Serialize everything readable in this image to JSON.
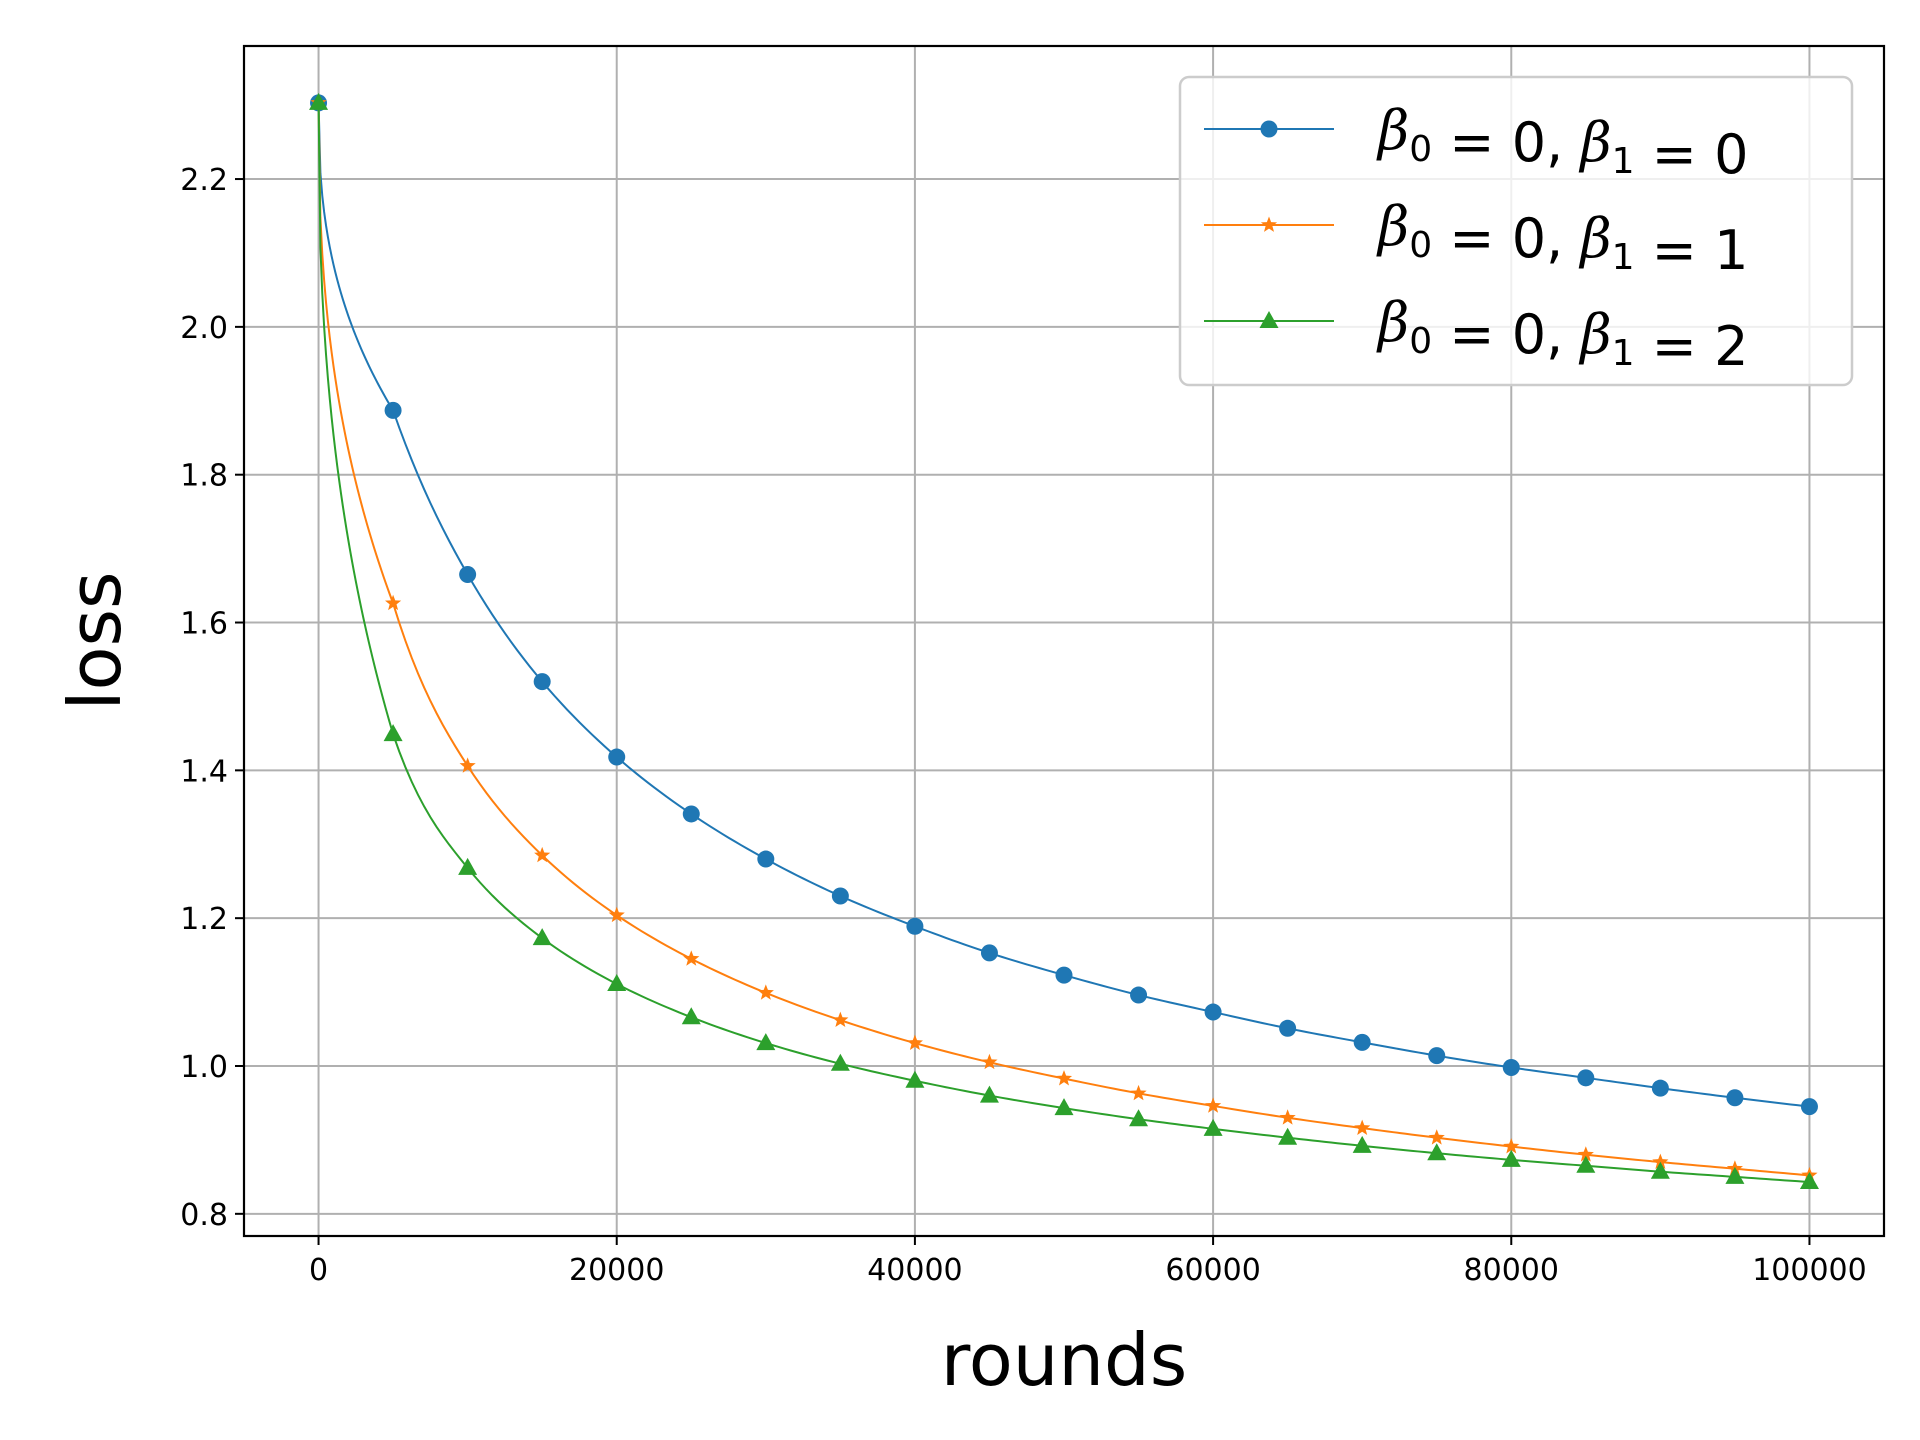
{
  "chart_data": {
    "type": "line",
    "xlabel": "rounds",
    "ylabel": "loss",
    "xlim": [
      -5000,
      105000
    ],
    "ylim": [
      0.77,
      2.38
    ],
    "x_ticks": [
      0,
      20000,
      40000,
      60000,
      80000,
      100000
    ],
    "x_tick_labels": [
      "0",
      "20000",
      "40000",
      "60000",
      "80000",
      "100000"
    ],
    "y_ticks": [
      0.8,
      1.0,
      1.2,
      1.4,
      1.6,
      1.8,
      2.0,
      2.2
    ],
    "y_tick_labels": [
      "0.8",
      "1.0",
      "1.2",
      "1.4",
      "1.6",
      "1.8",
      "2.0",
      "2.2"
    ],
    "grid": true,
    "legend_position": "top-right",
    "x": [
      0,
      5000,
      10000,
      15000,
      20000,
      25000,
      30000,
      35000,
      40000,
      45000,
      50000,
      55000,
      60000,
      65000,
      70000,
      75000,
      80000,
      85000,
      90000,
      95000,
      100000
    ],
    "series": [
      {
        "name": "β0 = 0, β1 = 0",
        "label_parts": {
          "b": "β",
          "s0": "0",
          "mid": " = 0, ",
          "s1": "1",
          "end": " = 0"
        },
        "color": "#1f77b4",
        "marker": "circle",
        "values": [
          2.303,
          1.887,
          1.665,
          1.52,
          1.418,
          1.341,
          1.28,
          1.23,
          1.189,
          1.153,
          1.123,
          1.096,
          1.073,
          1.051,
          1.032,
          1.014,
          0.998,
          0.984,
          0.97,
          0.957,
          0.945
        ]
      },
      {
        "name": "β0 = 0, β1 = 1",
        "label_parts": {
          "b": "β",
          "s0": "0",
          "mid": " = 0, ",
          "s1": "1",
          "end": " = 1"
        },
        "color": "#ff7f0e",
        "marker": "star",
        "values": [
          2.303,
          1.626,
          1.406,
          1.285,
          1.204,
          1.145,
          1.099,
          1.062,
          1.031,
          1.005,
          0.983,
          0.963,
          0.946,
          0.93,
          0.916,
          0.903,
          0.891,
          0.88,
          0.87,
          0.861,
          0.852
        ]
      },
      {
        "name": "β0 = 0, β1 = 2",
        "label_parts": {
          "b": "β",
          "s0": "0",
          "mid": " = 0, ",
          "s1": "1",
          "end": " = 2"
        },
        "color": "#2ca02c",
        "marker": "triangle",
        "values": [
          2.303,
          1.449,
          1.268,
          1.173,
          1.111,
          1.066,
          1.031,
          1.003,
          0.98,
          0.96,
          0.943,
          0.928,
          0.915,
          0.903,
          0.892,
          0.882,
          0.873,
          0.865,
          0.857,
          0.85,
          0.843
        ]
      }
    ]
  }
}
